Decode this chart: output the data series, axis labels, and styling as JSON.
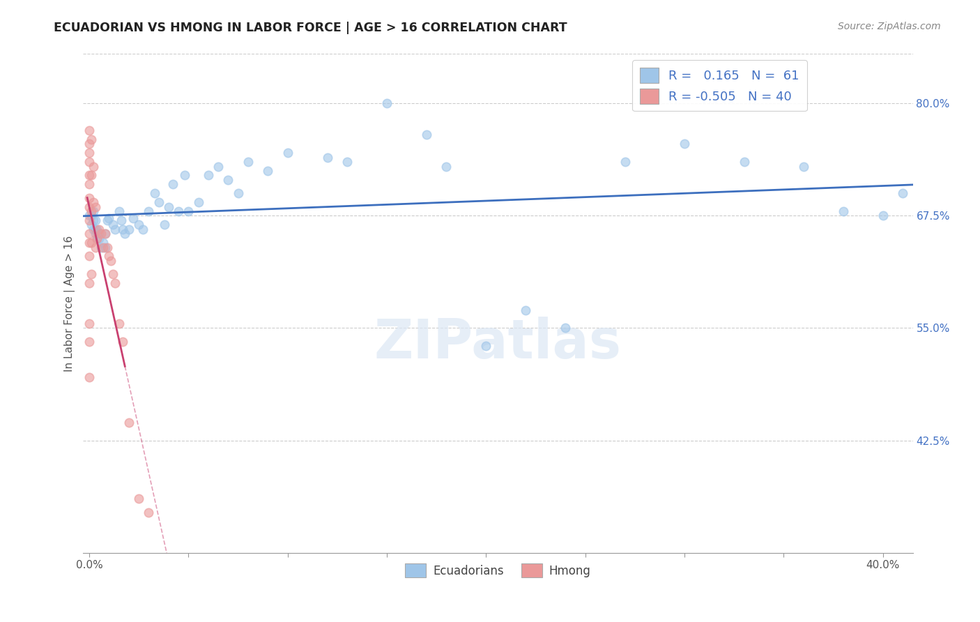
{
  "title": "ECUADORIAN VS HMONG IN LABOR FORCE | AGE > 16 CORRELATION CHART",
  "source_text": "Source: ZipAtlas.com",
  "ylabel": "In Labor Force | Age > 16",
  "xlim": [
    -0.003,
    0.415
  ],
  "ylim": [
    0.3,
    0.855
  ],
  "blue_color": "#9fc5e8",
  "pink_color": "#ea9999",
  "blue_line_color": "#3d6fbe",
  "pink_line_color": "#c94070",
  "legend_R_blue": "0.165",
  "legend_N_blue": "61",
  "legend_R_pink": "-0.505",
  "legend_N_pink": "40",
  "legend_label_blue": "Ecuadorians",
  "legend_label_pink": "Hmong",
  "watermark": "ZIPatlas",
  "y_ticks_right": [
    0.8,
    0.675,
    0.55,
    0.425
  ],
  "y_tick_right_labels": [
    "80.0%",
    "67.5%",
    "55.0%",
    "42.5%"
  ],
  "x_major_ticks": [
    0.0,
    0.05,
    0.1,
    0.15,
    0.2,
    0.25,
    0.3,
    0.35,
    0.4
  ],
  "ecuadorian_x": [
    0.0,
    0.001,
    0.001,
    0.002,
    0.002,
    0.002,
    0.003,
    0.003,
    0.003,
    0.004,
    0.004,
    0.005,
    0.005,
    0.006,
    0.007,
    0.008,
    0.008,
    0.009,
    0.01,
    0.012,
    0.013,
    0.015,
    0.016,
    0.017,
    0.018,
    0.02,
    0.022,
    0.025,
    0.027,
    0.03,
    0.033,
    0.035,
    0.038,
    0.04,
    0.042,
    0.045,
    0.048,
    0.05,
    0.055,
    0.06,
    0.065,
    0.07,
    0.075,
    0.08,
    0.09,
    0.1,
    0.12,
    0.13,
    0.15,
    0.17,
    0.18,
    0.2,
    0.22,
    0.24,
    0.27,
    0.3,
    0.33,
    0.36,
    0.38,
    0.4,
    0.41
  ],
  "ecuadorian_y": [
    0.675,
    0.665,
    0.675,
    0.66,
    0.67,
    0.68,
    0.655,
    0.66,
    0.67,
    0.65,
    0.66,
    0.65,
    0.655,
    0.64,
    0.645,
    0.64,
    0.655,
    0.67,
    0.672,
    0.665,
    0.66,
    0.68,
    0.67,
    0.66,
    0.655,
    0.66,
    0.672,
    0.665,
    0.66,
    0.68,
    0.7,
    0.69,
    0.665,
    0.685,
    0.71,
    0.68,
    0.72,
    0.68,
    0.69,
    0.72,
    0.73,
    0.715,
    0.7,
    0.735,
    0.725,
    0.745,
    0.74,
    0.735,
    0.8,
    0.765,
    0.73,
    0.53,
    0.57,
    0.55,
    0.735,
    0.755,
    0.735,
    0.73,
    0.68,
    0.675,
    0.7
  ],
  "hmong_x": [
    0.0,
    0.0,
    0.0,
    0.0,
    0.0,
    0.0,
    0.0,
    0.0,
    0.0,
    0.0,
    0.0,
    0.0,
    0.0,
    0.0,
    0.0,
    0.0,
    0.001,
    0.001,
    0.001,
    0.001,
    0.001,
    0.002,
    0.002,
    0.003,
    0.003,
    0.004,
    0.005,
    0.006,
    0.007,
    0.008,
    0.009,
    0.01,
    0.011,
    0.012,
    0.013,
    0.015,
    0.017,
    0.02,
    0.025,
    0.03
  ],
  "hmong_y": [
    0.77,
    0.755,
    0.745,
    0.735,
    0.72,
    0.71,
    0.695,
    0.685,
    0.67,
    0.655,
    0.645,
    0.63,
    0.6,
    0.555,
    0.535,
    0.495,
    0.76,
    0.72,
    0.68,
    0.645,
    0.61,
    0.73,
    0.69,
    0.685,
    0.64,
    0.65,
    0.66,
    0.655,
    0.64,
    0.655,
    0.64,
    0.63,
    0.625,
    0.61,
    0.6,
    0.555,
    0.535,
    0.445,
    0.36,
    0.345
  ]
}
